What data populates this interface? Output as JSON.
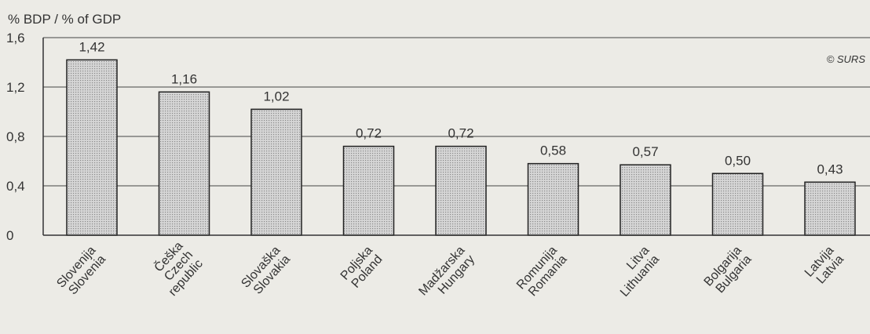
{
  "chart_data": {
    "type": "bar",
    "ylabel": "% BDP / % of GDP",
    "copyright": "© SURS",
    "ylim": [
      0,
      1.6
    ],
    "yticks": [
      0,
      0.4,
      0.8,
      1.2,
      1.6
    ],
    "ytick_labels": [
      "0",
      "0,4",
      "0,8",
      "1,2",
      "1,6"
    ],
    "grid": true,
    "categories": [
      [
        "Slovenija",
        "Slovenia"
      ],
      [
        "Češka",
        "Czech",
        "republic"
      ],
      [
        "Slovaška",
        "Slovakia"
      ],
      [
        "Poljska",
        "Poland"
      ],
      [
        "Madžarska",
        "Hungary"
      ],
      [
        "Romunija",
        "Romania"
      ],
      [
        "Litva",
        "Lithuania"
      ],
      [
        "Bolgarija",
        "Bulgaria"
      ],
      [
        "Latvija",
        "Latvia"
      ]
    ],
    "values": [
      1.42,
      1.16,
      1.02,
      0.72,
      0.72,
      0.58,
      0.57,
      0.5,
      0.43
    ],
    "value_labels": [
      "1,42",
      "1,16",
      "1,02",
      "0,72",
      "0,72",
      "0,58",
      "0,57",
      "0,50",
      "0,43"
    ]
  }
}
